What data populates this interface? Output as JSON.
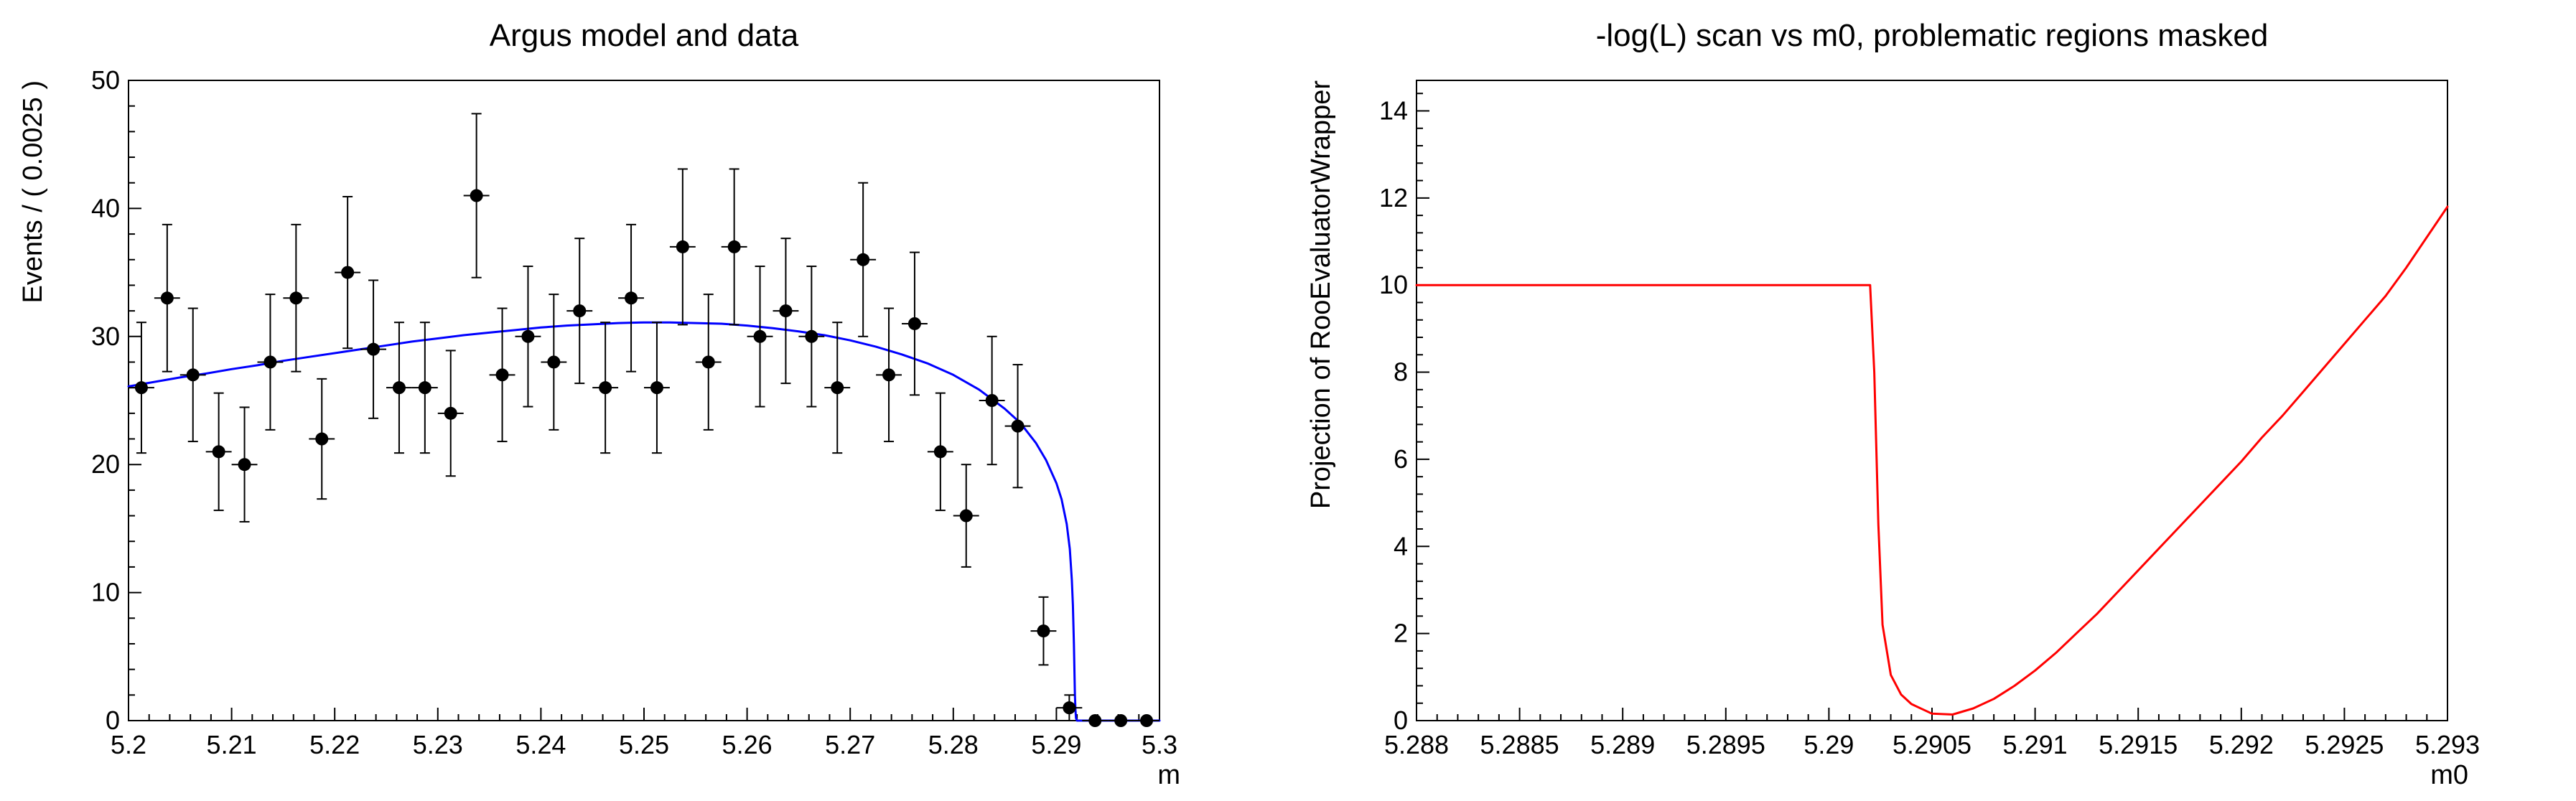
{
  "page": {
    "background": "#ffffff"
  },
  "chart_data": [
    {
      "type": "scatter",
      "title": "Argus model and data",
      "xlabel": "m",
      "ylabel": "Events / ( 0.0025 )",
      "xlim": [
        5.2,
        5.3
      ],
      "ylim": [
        0,
        50
      ],
      "x_ticks": [
        5.2,
        5.21,
        5.22,
        5.23,
        5.24,
        5.25,
        5.26,
        5.27,
        5.28,
        5.29,
        5.3
      ],
      "x_tick_labels": [
        "5.2",
        "5.21",
        "5.22",
        "5.23",
        "5.24",
        "5.25",
        "5.26",
        "5.27",
        "5.28",
        "5.29",
        "5.3"
      ],
      "x_minor_step": 0.002,
      "y_ticks": [
        0,
        10,
        20,
        30,
        40,
        50
      ],
      "y_tick_labels": [
        "0",
        "10",
        "20",
        "30",
        "40",
        "50"
      ],
      "y_minor_step": 2,
      "bin_width": 0.0025,
      "bin_half_width": 0.00125,
      "marker_color": "#000000",
      "points": {
        "x": [
          5.20125,
          5.20375,
          5.20625,
          5.20875,
          5.21125,
          5.21375,
          5.21625,
          5.21875,
          5.22125,
          5.22375,
          5.22625,
          5.22875,
          5.23125,
          5.23375,
          5.23625,
          5.23875,
          5.24125,
          5.24375,
          5.24625,
          5.24875,
          5.25125,
          5.25375,
          5.25625,
          5.25875,
          5.26125,
          5.26375,
          5.26625,
          5.26875,
          5.27125,
          5.27375,
          5.27625,
          5.27875,
          5.28125,
          5.28375,
          5.28625,
          5.28875,
          5.29125,
          5.29375,
          5.29625,
          5.29875
        ],
        "y": [
          26,
          33,
          27,
          21,
          20,
          28,
          33,
          22,
          35,
          29,
          26,
          26,
          24,
          41,
          27,
          30,
          28,
          32,
          26,
          33,
          26,
          37,
          28,
          37,
          30,
          32,
          30,
          26,
          36,
          27,
          31,
          21,
          16,
          25,
          23,
          7,
          1,
          0,
          0,
          0
        ],
        "yerr": [
          5.1,
          5.74,
          5.2,
          4.58,
          4.47,
          5.29,
          5.74,
          4.69,
          5.92,
          5.39,
          5.1,
          5.1,
          4.9,
          6.4,
          5.2,
          5.48,
          5.29,
          5.66,
          5.1,
          5.74,
          5.1,
          6.08,
          5.29,
          6.08,
          5.48,
          5.66,
          5.48,
          5.1,
          6.0,
          5.2,
          5.57,
          4.58,
          4.0,
          5.0,
          4.8,
          2.65,
          1.0,
          0,
          0,
          0
        ]
      },
      "curve": {
        "name": "argus-model-curve",
        "color": "#0000ff",
        "xy": [
          [
            5.2,
            26.1
          ],
          [
            5.2025,
            26.45
          ],
          [
            5.205,
            26.8
          ],
          [
            5.2075,
            27.1
          ],
          [
            5.21,
            27.45
          ],
          [
            5.2125,
            27.75
          ],
          [
            5.215,
            28.1
          ],
          [
            5.2175,
            28.4
          ],
          [
            5.22,
            28.7
          ],
          [
            5.2225,
            29.0
          ],
          [
            5.225,
            29.3
          ],
          [
            5.2275,
            29.6
          ],
          [
            5.23,
            29.85
          ],
          [
            5.2325,
            30.1
          ],
          [
            5.235,
            30.3
          ],
          [
            5.2375,
            30.5
          ],
          [
            5.24,
            30.7
          ],
          [
            5.2425,
            30.85
          ],
          [
            5.245,
            30.95
          ],
          [
            5.2475,
            31.05
          ],
          [
            5.25,
            31.1
          ],
          [
            5.2525,
            31.1
          ],
          [
            5.255,
            31.05
          ],
          [
            5.2575,
            31.0
          ],
          [
            5.26,
            30.85
          ],
          [
            5.2625,
            30.65
          ],
          [
            5.265,
            30.4
          ],
          [
            5.2675,
            30.1
          ],
          [
            5.27,
            29.7
          ],
          [
            5.2725,
            29.2
          ],
          [
            5.275,
            28.6
          ],
          [
            5.2775,
            27.9
          ],
          [
            5.28,
            27.0
          ],
          [
            5.2825,
            25.85
          ],
          [
            5.285,
            24.35
          ],
          [
            5.2865,
            23.25
          ],
          [
            5.288,
            21.7
          ],
          [
            5.289,
            20.35
          ],
          [
            5.29,
            18.55
          ],
          [
            5.2905,
            17.3
          ],
          [
            5.291,
            15.35
          ],
          [
            5.2913,
            13.4
          ],
          [
            5.2915,
            11.0
          ],
          [
            5.2916,
            9.0
          ],
          [
            5.2917,
            6.0
          ],
          [
            5.29175,
            4.0
          ],
          [
            5.2918,
            2.0
          ],
          [
            5.29185,
            0.8
          ],
          [
            5.2919,
            0.2
          ],
          [
            5.292,
            0.0
          ],
          [
            5.295,
            0.0
          ],
          [
            5.3,
            0.0
          ]
        ]
      }
    },
    {
      "type": "line",
      "title": "-log(L) scan vs m0, problematic regions masked",
      "xlabel": "m0",
      "ylabel": "Projection of RooEvaluatorWrapper",
      "xlim": [
        5.288,
        5.293
      ],
      "ylim": [
        0,
        14.7
      ],
      "x_ticks": [
        5.288,
        5.2885,
        5.289,
        5.2895,
        5.29,
        5.2905,
        5.291,
        5.2915,
        5.292,
        5.2925,
        5.293
      ],
      "x_tick_labels": [
        "5.288",
        "5.2885",
        "5.289",
        "5.2895",
        "5.29",
        "5.2905",
        "5.291",
        "5.2915",
        "5.292",
        "5.2925",
        "5.293"
      ],
      "x_minor_step": 0.0001,
      "y_ticks": [
        0,
        2,
        4,
        6,
        8,
        10,
        12,
        14
      ],
      "y_tick_labels": [
        "0",
        "2",
        "4",
        "6",
        "8",
        "10",
        "12",
        "14"
      ],
      "y_minor_step": 0.4,
      "curve": {
        "name": "nll-scan-curve",
        "color": "#ff0000",
        "xy": [
          [
            5.288,
            10.0
          ],
          [
            5.289,
            10.0
          ],
          [
            5.29,
            10.0
          ],
          [
            5.2902,
            10.0
          ],
          [
            5.29022,
            8.0
          ],
          [
            5.29024,
            4.5
          ],
          [
            5.29026,
            2.2
          ],
          [
            5.2903,
            1.05
          ],
          [
            5.29035,
            0.6
          ],
          [
            5.2904,
            0.38
          ],
          [
            5.2905,
            0.16
          ],
          [
            5.2906,
            0.14
          ],
          [
            5.2907,
            0.28
          ],
          [
            5.2908,
            0.5
          ],
          [
            5.2909,
            0.8
          ],
          [
            5.291,
            1.15
          ],
          [
            5.2911,
            1.55
          ],
          [
            5.2912,
            2.0
          ],
          [
            5.2913,
            2.45
          ],
          [
            5.2914,
            2.95
          ],
          [
            5.2915,
            3.45
          ],
          [
            5.2916,
            3.95
          ],
          [
            5.2917,
            4.45
          ],
          [
            5.2918,
            4.95
          ],
          [
            5.2919,
            5.45
          ],
          [
            5.292,
            5.95
          ],
          [
            5.2921,
            6.5
          ],
          [
            5.2922,
            7.0
          ],
          [
            5.2923,
            7.55
          ],
          [
            5.2924,
            8.1
          ],
          [
            5.2925,
            8.65
          ],
          [
            5.2926,
            9.2
          ],
          [
            5.2927,
            9.75
          ],
          [
            5.2928,
            10.4
          ],
          [
            5.2929,
            11.1
          ],
          [
            5.293,
            11.8
          ]
        ]
      }
    }
  ]
}
